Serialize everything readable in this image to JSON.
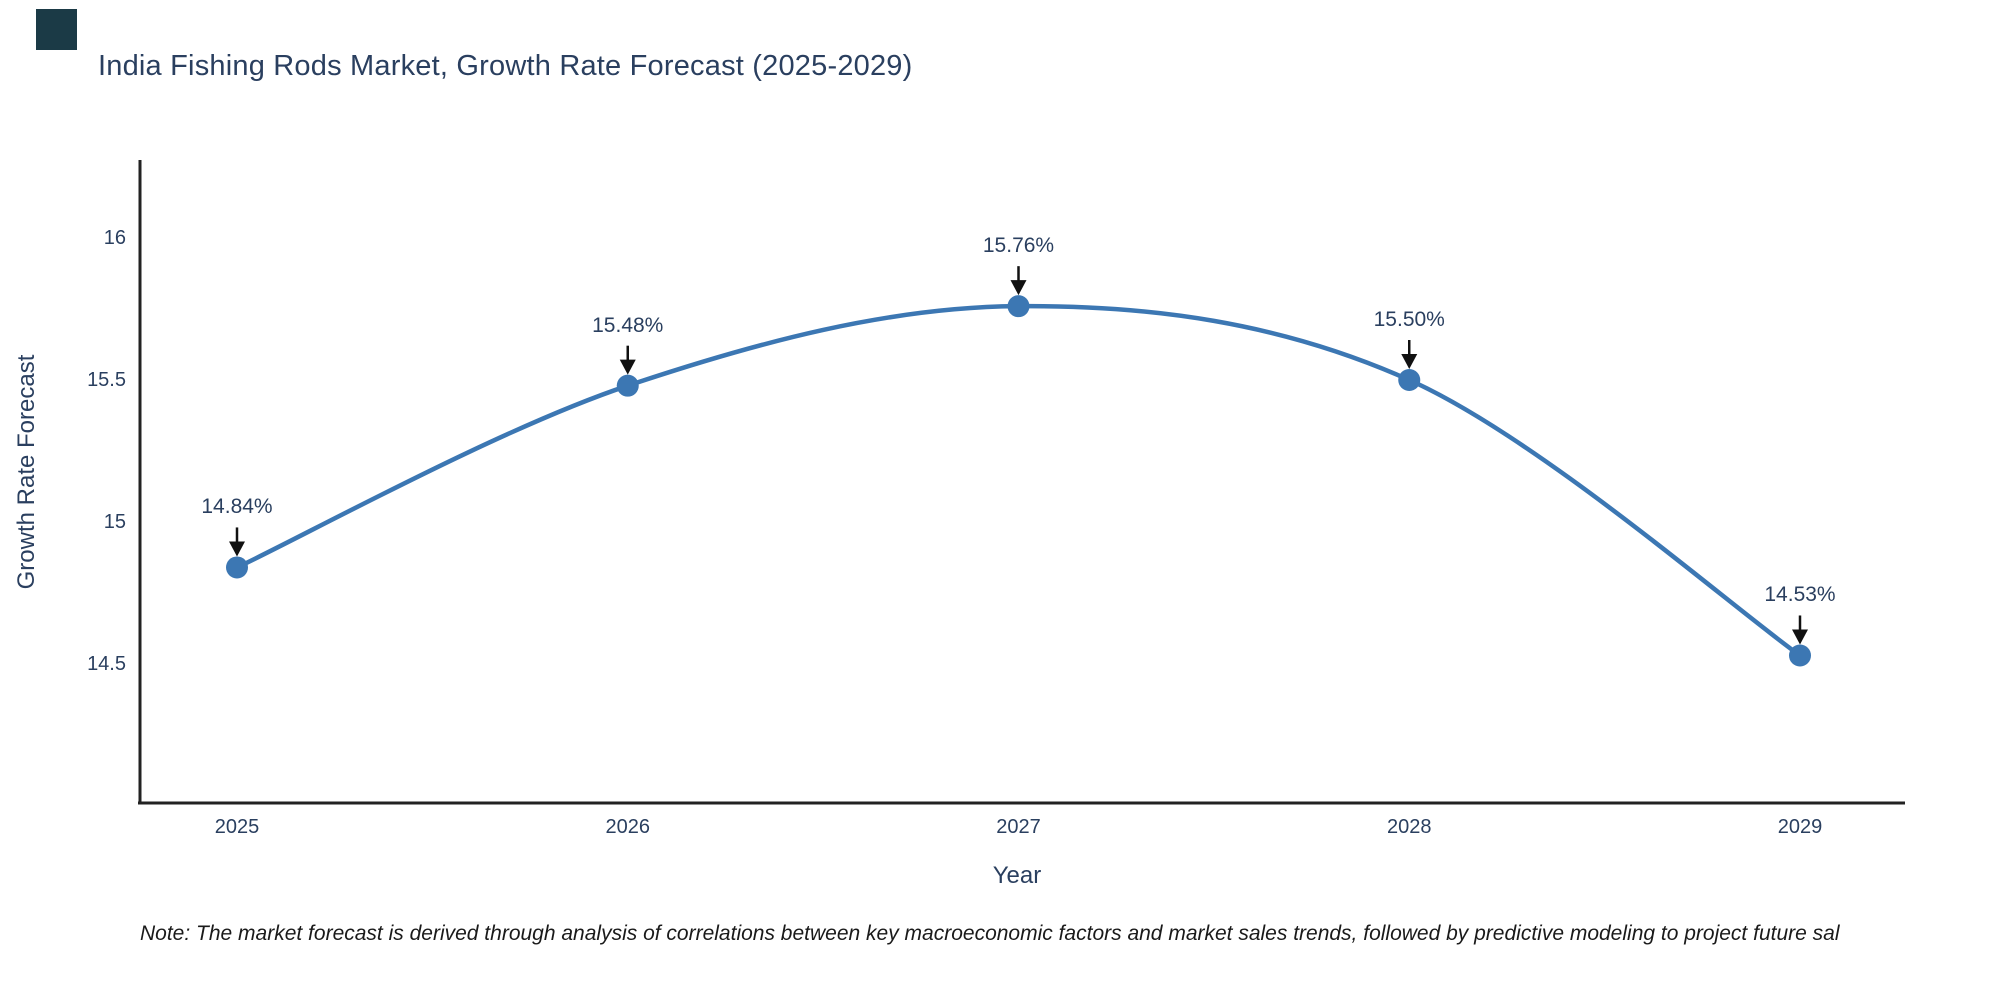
{
  "logo": {
    "color": "#1b3a46"
  },
  "title": "India Fishing Rods Market, Growth Rate Forecast (2025-2029)",
  "note": "Note: The market forecast is derived through analysis of correlations between key macroeconomic factors and market sales trends, followed by predictive modeling to project future sal",
  "chart_data": {
    "type": "line",
    "title": "India Fishing Rods Market, Growth Rate Forecast (2025-2029)",
    "x": [
      2025,
      2026,
      2027,
      2028,
      2029
    ],
    "values": [
      14.84,
      15.48,
      15.76,
      15.5,
      14.53
    ],
    "point_labels": [
      "14.84%",
      "15.48%",
      "15.76%",
      "15.50%",
      "14.53%"
    ],
    "series_name": "Growth Rate Forecast",
    "xlabel": "Year",
    "ylabel": "Growth Rate Forecast",
    "xtick_labels": [
      "2025",
      "2026",
      "2027",
      "2028",
      "2029"
    ],
    "yticks": [
      16,
      15.5,
      15,
      14.5
    ],
    "ytick_labels": [
      "16",
      "15.5",
      "15",
      "14.5"
    ],
    "ylim": [
      14.0,
      16.3
    ],
    "grid": false,
    "legend": "none",
    "line_shape": "spline",
    "line_color": "#3c77b3",
    "marker_color": "#3c77b3",
    "arrow_color": "#111111",
    "axis_line_color": "#222222",
    "text_color": "#2a3f5f"
  }
}
